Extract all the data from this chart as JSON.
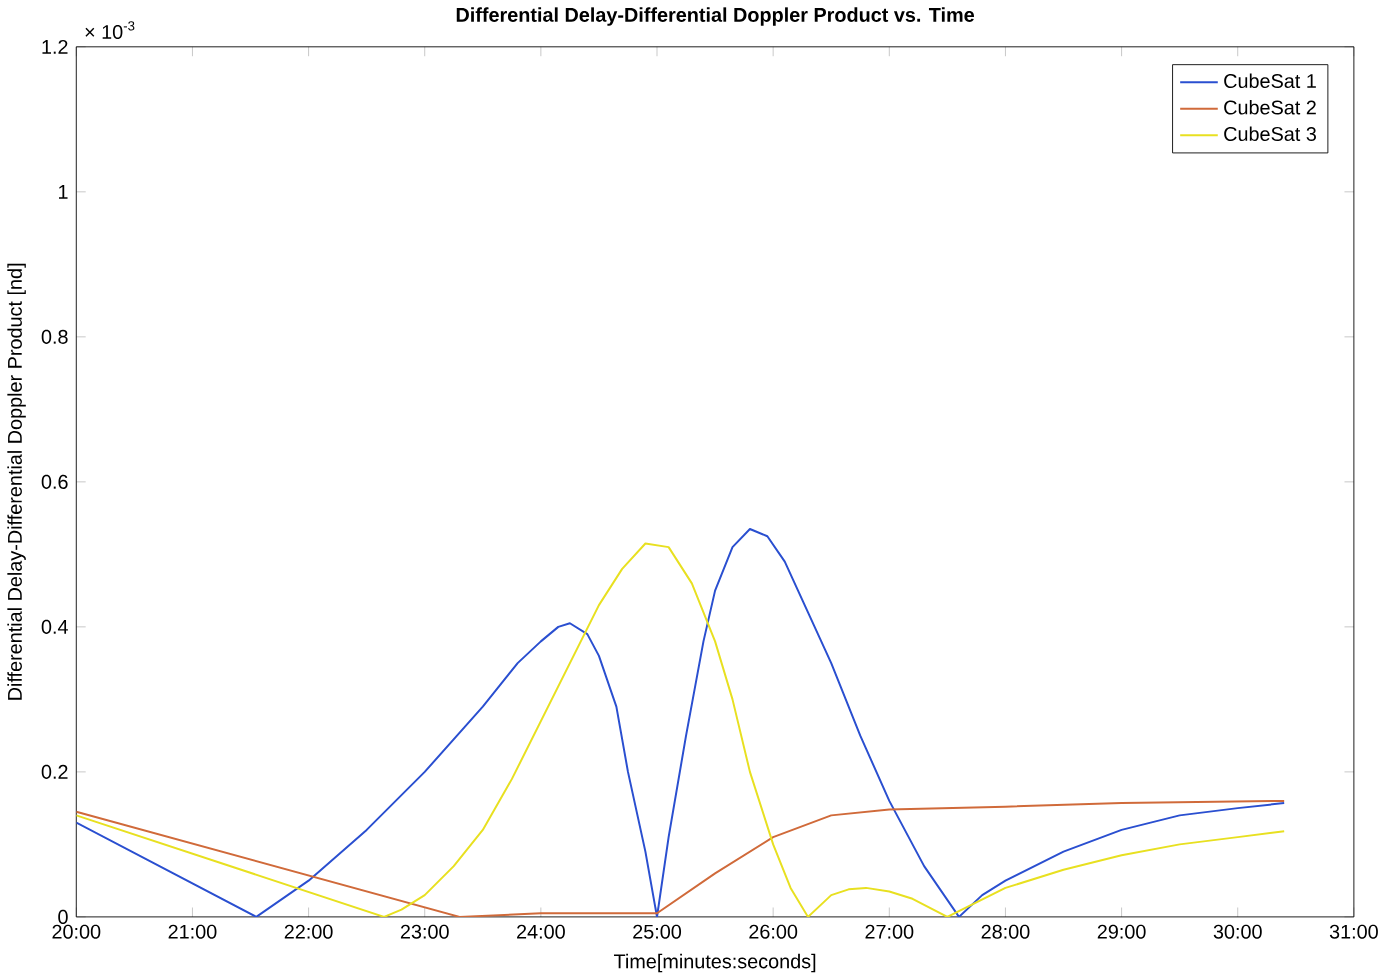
{
  "chart_data": {
    "type": "line",
    "title": "Differential Delay-Differential Doppler Product vs. Time",
    "xlabel": "Time[minutes:seconds]",
    "ylabel": "Differential Delay-Differential Doppler Product [nd]",
    "annotations": [
      "× 10$^{-3}$"
    ],
    "xlim": [
      20,
      31
    ],
    "ylim": [
      0,
      1.2
    ],
    "xticks": [
      {
        "value": 20,
        "label": "20:00"
      },
      {
        "value": 21,
        "label": "21:00"
      },
      {
        "value": 22,
        "label": "22:00"
      },
      {
        "value": 23,
        "label": "23:00"
      },
      {
        "value": 24,
        "label": "24:00"
      },
      {
        "value": 25,
        "label": "25:00"
      },
      {
        "value": 26,
        "label": "26:00"
      },
      {
        "value": 27,
        "label": "27:00"
      },
      {
        "value": 28,
        "label": "28:00"
      },
      {
        "value": 29,
        "label": "29:00"
      },
      {
        "value": 30,
        "label": "30:00"
      },
      {
        "value": 31,
        "label": "31:00"
      }
    ],
    "yticks": [
      0,
      0.2,
      0.4,
      0.6,
      0.8,
      1,
      1.2
    ],
    "grid": false,
    "legend": "top right",
    "series": [
      {
        "name": "CubeSat 1",
        "color": "#2a4fd0",
        "x": [
          20,
          21.55,
          22,
          22.5,
          23,
          23.5,
          23.8,
          24,
          24.15,
          24.25,
          24.4,
          24.5,
          24.65,
          24.75,
          24.9,
          25,
          25.1,
          25.25,
          25.4,
          25.5,
          25.65,
          25.8,
          25.95,
          26.1,
          26.3,
          26.5,
          26.75,
          27,
          27.3,
          27.6,
          27.8,
          28,
          28.5,
          29,
          29.5,
          30,
          30.4
        ],
        "values": [
          0.13,
          0,
          0.05,
          0.12,
          0.2,
          0.29,
          0.35,
          0.38,
          0.4,
          0.405,
          0.39,
          0.36,
          0.29,
          0.2,
          0.09,
          0,
          0.11,
          0.25,
          0.38,
          0.45,
          0.51,
          0.535,
          0.525,
          0.49,
          0.42,
          0.35,
          0.25,
          0.16,
          0.07,
          0,
          0.03,
          0.05,
          0.09,
          0.12,
          0.14,
          0.15,
          0.157
        ]
      },
      {
        "name": "CubeSat 2",
        "color": "#d06a3a",
        "x": [
          20,
          23.3,
          24,
          25,
          25.5,
          26,
          26.5,
          27,
          28,
          29,
          30.4
        ],
        "values": [
          0.145,
          0,
          0.005,
          0.005,
          0.06,
          0.11,
          0.14,
          0.148,
          0.152,
          0.157,
          0.16
        ]
      },
      {
        "name": "CubeSat 3",
        "color": "#e8e020",
        "x": [
          20,
          22.65,
          22.8,
          23,
          23.25,
          23.5,
          23.75,
          24,
          24.25,
          24.5,
          24.7,
          24.9,
          25.1,
          25.3,
          25.5,
          25.65,
          25.8,
          26,
          26.15,
          26.3,
          26.5,
          26.65,
          26.8,
          27,
          27.2,
          27.5,
          28,
          28.5,
          29,
          29.5,
          30,
          30.4
        ],
        "values": [
          0.14,
          0,
          0.01,
          0.03,
          0.07,
          0.12,
          0.19,
          0.27,
          0.35,
          0.43,
          0.48,
          0.515,
          0.51,
          0.46,
          0.38,
          0.3,
          0.2,
          0.1,
          0.04,
          0,
          0.03,
          0.038,
          0.04,
          0.035,
          0.025,
          0,
          0.04,
          0.065,
          0.085,
          0.1,
          0.11,
          0.118
        ]
      }
    ]
  }
}
